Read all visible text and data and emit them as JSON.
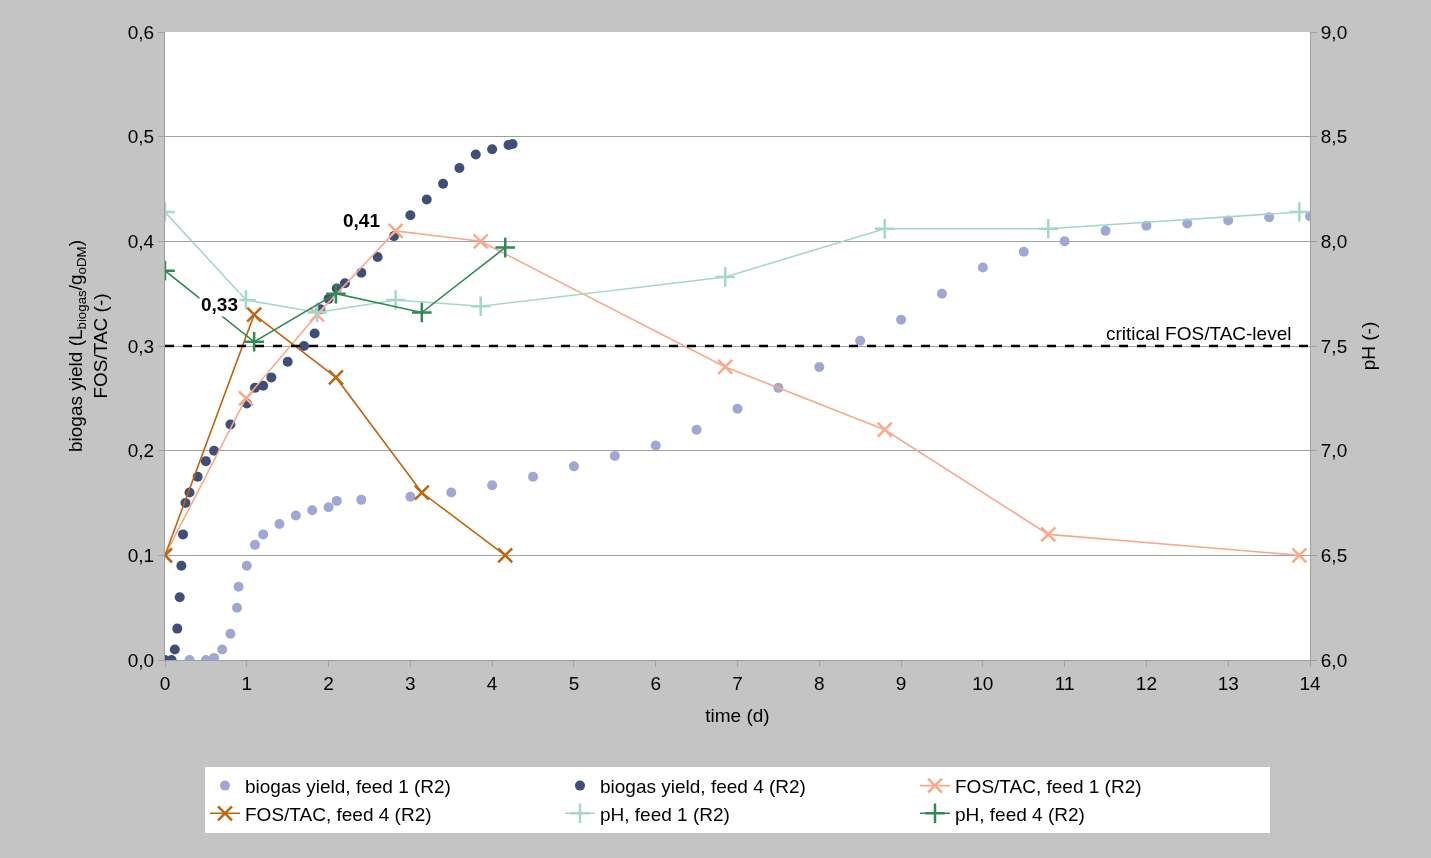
{
  "chart_data": {
    "type": "line",
    "xlabel": "time (d)",
    "ylabel": "biogas yield (L$_{biogas}$/g$_{oDM}$)\nFOS/TAC (-)",
    "y2label": "pH (-)",
    "xlim": [
      0,
      14
    ],
    "xticks": [
      0,
      1,
      2,
      3,
      4,
      5,
      6,
      7,
      8,
      9,
      10,
      11,
      12,
      13,
      14
    ],
    "ylim": [
      0,
      0.6
    ],
    "yticks": [
      {
        "value": 0,
        "label": "0,0"
      },
      {
        "value": 0.1,
        "label": "0,1"
      },
      {
        "value": 0.2,
        "label": "0,2"
      },
      {
        "value": 0.3,
        "label": "0,3"
      },
      {
        "value": 0.4,
        "label": "0,4"
      },
      {
        "value": 0.5,
        "label": "0,5"
      },
      {
        "value": 0.6,
        "label": "0,6"
      }
    ],
    "y2lim": [
      6,
      9
    ],
    "y2ticks": [
      {
        "value": 6,
        "label": "6,0"
      },
      {
        "value": 6.5,
        "label": "6,5"
      },
      {
        "value": 7,
        "label": "7,0"
      },
      {
        "value": 7.5,
        "label": "7,5"
      },
      {
        "value": 8,
        "label": "8,0"
      },
      {
        "value": 8.5,
        "label": "8,5"
      },
      {
        "value": 9,
        "label": "9,0"
      }
    ],
    "grid": "y",
    "legend": "bottom",
    "series": [
      {
        "name": "biogas yield, feed 1 (R2)",
        "type": "scatter",
        "marker": "circle",
        "color": "#9fa8d4",
        "x": [
          0.3,
          0.5,
          0.6,
          0.7,
          0.8,
          0.88,
          0.9,
          1.0,
          1.1,
          1.2,
          1.4,
          1.6,
          1.8,
          2.0,
          2.1,
          2.4,
          3.0,
          3.5,
          4.0,
          4.5,
          5.0,
          5.5,
          6.0,
          6.5,
          7.0,
          7.5,
          8.0,
          8.5,
          9.0,
          9.5,
          10.0,
          10.5,
          11.0,
          11.5,
          12.0,
          12.5,
          13.0,
          13.5,
          14.0
        ],
        "values": [
          0,
          0,
          0.002,
          0.01,
          0.025,
          0.05,
          0.07,
          0.09,
          0.11,
          0.12,
          0.13,
          0.138,
          0.143,
          0.146,
          0.152,
          0.153,
          0.156,
          0.16,
          0.167,
          0.175,
          0.185,
          0.195,
          0.205,
          0.22,
          0.24,
          0.26,
          0.28,
          0.305,
          0.325,
          0.35,
          0.375,
          0.39,
          0.4,
          0.41,
          0.415,
          0.417,
          0.42,
          0.423,
          0.424
        ]
      },
      {
        "name": "biogas yield, feed 4 (R2)",
        "type": "scatter",
        "marker": "circle",
        "color": "#3f4f7a",
        "x": [
          0,
          0.08,
          0.12,
          0.15,
          0.18,
          0.2,
          0.22,
          0.25,
          0.3,
          0.4,
          0.5,
          0.6,
          0.8,
          1.0,
          1.1,
          1.2,
          1.3,
          1.5,
          1.7,
          1.83,
          1.9,
          2.0,
          2.1,
          2.2,
          2.4,
          2.6,
          2.8,
          3.0,
          3.2,
          3.4,
          3.6,
          3.8,
          4.0,
          4.2,
          4.25
        ],
        "values": [
          0,
          0,
          0.01,
          0.03,
          0.06,
          0.09,
          0.12,
          0.15,
          0.16,
          0.175,
          0.19,
          0.2,
          0.225,
          0.245,
          0.26,
          0.262,
          0.27,
          0.285,
          0.3,
          0.312,
          0.335,
          0.345,
          0.355,
          0.36,
          0.37,
          0.385,
          0.405,
          0.425,
          0.44,
          0.455,
          0.47,
          0.483,
          0.488,
          0.492,
          0.493
        ]
      },
      {
        "name": "FOS/TAC, feed 1 (R2)",
        "marker": "x",
        "color": "#f8a98b",
        "x": [
          0,
          0.99,
          1.86,
          2.82,
          3.86,
          6.85,
          8.8,
          10.8,
          13.87
        ],
        "values": [
          0.1,
          0.25,
          0.33,
          0.41,
          0.4,
          0.28,
          0.22,
          0.12,
          0.1
        ]
      },
      {
        "name": "FOS/TAC, feed 4 (R2)",
        "marker": "x",
        "color": "#c0650f",
        "x": [
          0,
          1.09,
          2.09,
          3.14,
          4.16
        ],
        "values": [
          0.1,
          0.33,
          0.27,
          0.16,
          0.1
        ]
      },
      {
        "name": "pH, feed 1 (R2)",
        "marker": "cross",
        "axis": "y2",
        "color": "#a4d8c4",
        "x": [
          0,
          0.99,
          1.86,
          2.82,
          3.86,
          6.85,
          8.8,
          10.8,
          13.87
        ],
        "values": [
          8.14,
          7.72,
          7.66,
          7.72,
          7.69,
          7.83,
          8.06,
          8.06,
          8.14
        ]
      },
      {
        "name": "pH, feed 4 (R2)",
        "marker": "cross",
        "axis": "y2",
        "color": "#2e8a52",
        "x": [
          0,
          1.09,
          2.09,
          3.14,
          4.16
        ],
        "values": [
          7.86,
          7.52,
          7.75,
          7.66,
          7.97
        ]
      }
    ],
    "ref_lines": [
      {
        "axis": "y",
        "value": 0.3,
        "label": "critical FOS/TAC-level",
        "color": "#000000",
        "line_style": "dashed"
      }
    ],
    "annotations": [
      {
        "text": "0,41",
        "x": 2.82,
        "y": 0.41
      },
      {
        "text": "0,33",
        "x": 1.09,
        "y": 0.33
      }
    ]
  }
}
